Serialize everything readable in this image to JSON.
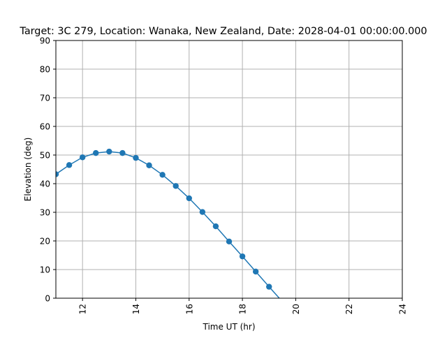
{
  "chart_data": {
    "type": "line",
    "title": "Target: 3C 279,  Location: Wanaka, New Zealand, Date: 2028-04-01 00:00:00.000",
    "xlabel": "Time UT (hr)",
    "ylabel": "Elevation (deg)",
    "xlim": [
      11,
      24
    ],
    "ylim": [
      0,
      90
    ],
    "xticks": [
      12,
      14,
      16,
      18,
      20,
      22,
      24
    ],
    "yticks": [
      0,
      10,
      20,
      30,
      40,
      50,
      60,
      70,
      80,
      90
    ],
    "grid": true,
    "line_color": "#1f77b4",
    "marker": "circle",
    "x": [
      11.0,
      11.5,
      12.0,
      12.5,
      13.0,
      13.5,
      14.0,
      14.5,
      15.0,
      15.5,
      16.0,
      16.5,
      17.0,
      17.5,
      18.0,
      18.5,
      19.0,
      19.5
    ],
    "y": [
      43.3,
      46.5,
      49.2,
      50.7,
      51.2,
      50.7,
      49.0,
      46.4,
      43.1,
      39.2,
      34.9,
      30.1,
      25.1,
      19.8,
      14.6,
      9.3,
      4.0,
      -1.2
    ]
  }
}
